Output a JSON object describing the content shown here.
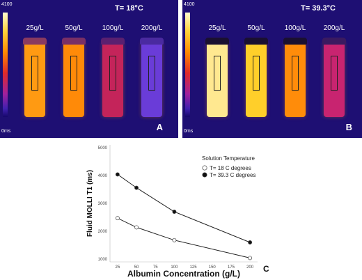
{
  "panel_a": {
    "temperature": "T= 18°C",
    "letter": "A",
    "scale_max": "4100",
    "scale_min": "0ms",
    "tubes": [
      {
        "label": "25g/L",
        "color": "#ff9a12",
        "cap": "#8a3a60"
      },
      {
        "label": "50g/L",
        "color": "#ff8a08",
        "cap": "#7a2f66"
      },
      {
        "label": "100g/L",
        "color": "#c4245a",
        "cap": "#5a2070"
      },
      {
        "label": "200g/L",
        "color": "#6a3cd8",
        "cap": "#4a2aa0"
      }
    ]
  },
  "panel_b": {
    "temperature": "T= 39.3°C",
    "letter": "B",
    "scale_max": "4100",
    "scale_min": "0ms",
    "tubes": [
      {
        "label": "25g/L",
        "color": "#ffe890",
        "cap": "#1a1030"
      },
      {
        "label": "50g/L",
        "color": "#ffcf2a",
        "cap": "#1a1030"
      },
      {
        "label": "100g/L",
        "color": "#ff8c0a",
        "cap": "#1a1030"
      },
      {
        "label": "200g/L",
        "color": "#c82470",
        "cap": "#3a1a60"
      }
    ]
  },
  "chart_data": {
    "type": "line",
    "panel_letter": "C",
    "xlabel": "Albumin Concentration (g/L)",
    "ylabel": "Fluid MOLLI T1 (ms)",
    "x_ticks": [
      "25",
      "50",
      "75",
      "100",
      "125",
      "150",
      "175",
      "200"
    ],
    "y_ticks": [
      "1000",
      "2000",
      "3000",
      "4000",
      "5000"
    ],
    "xlim": [
      15,
      210
    ],
    "ylim": [
      900,
      5100
    ],
    "legend_title": "Solution Temperature",
    "legend_position": "top-right",
    "series": [
      {
        "name": "T= 18 C degrees",
        "marker": "open",
        "x": [
          25,
          50,
          100,
          200
        ],
        "values": [
          2470,
          2140,
          1680,
          1040
        ]
      },
      {
        "name": "T= 39.3 C degrees",
        "marker": "filled",
        "x": [
          25,
          50,
          100,
          200
        ],
        "values": [
          4040,
          3560,
          2700,
          1600
        ]
      }
    ]
  }
}
